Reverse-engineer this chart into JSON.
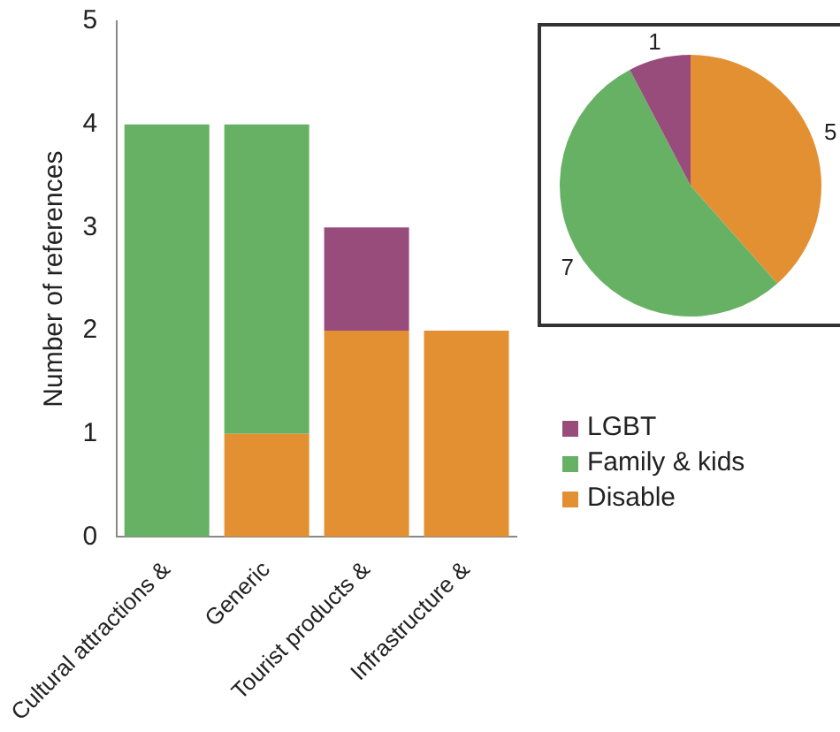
{
  "chart_data": [
    {
      "type": "bar",
      "stacked": true,
      "ylabel": "Number of references",
      "categories": [
        "Cultural attractions &",
        "Generic",
        "Tourist products &",
        "Infrastructure &"
      ],
      "series": [
        {
          "name": "Disable",
          "color": "#e39033",
          "values": [
            0,
            1,
            2,
            2
          ]
        },
        {
          "name": "Family & kids",
          "color": "#67b164",
          "values": [
            4,
            3,
            0,
            0
          ]
        },
        {
          "name": "LGBT",
          "color": "#984c7c",
          "values": [
            0,
            0,
            1,
            0
          ]
        }
      ],
      "ylim": [
        0,
        5
      ],
      "yticks": [
        0,
        1,
        2,
        3,
        4,
        5
      ],
      "grid": false,
      "legend": "right"
    },
    {
      "type": "pie",
      "categories": [
        null,
        null,
        null
      ],
      "values": [
        5,
        7,
        1
      ],
      "colors": [
        "#e39033",
        "#67b164",
        "#984c7c"
      ],
      "data_labels": true
    }
  ]
}
